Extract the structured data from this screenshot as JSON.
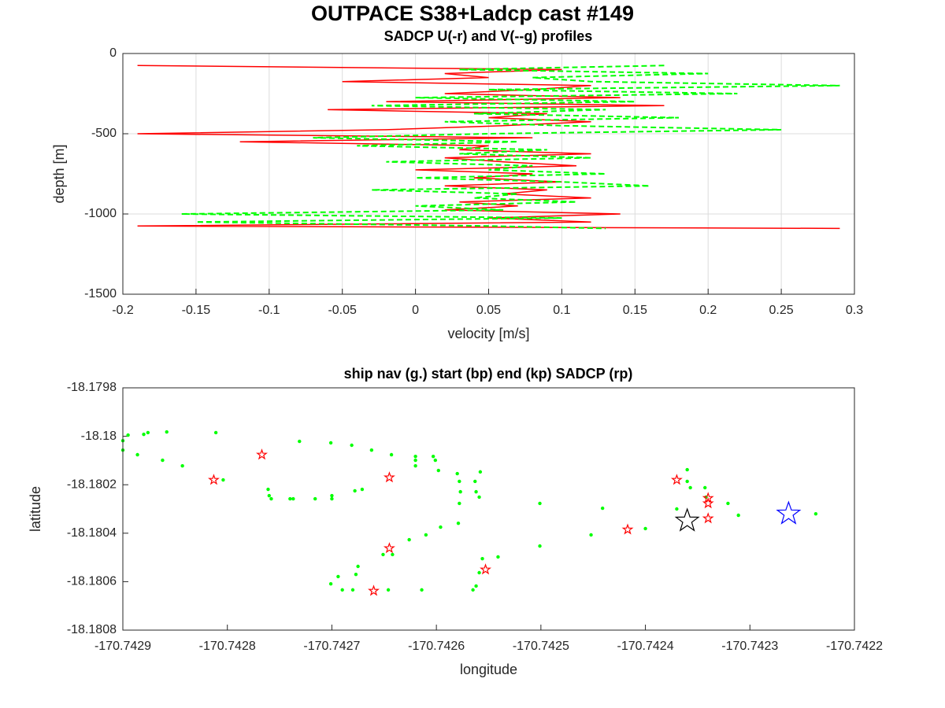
{
  "chart_data": [
    {
      "type": "line",
      "title": "OUTPACE S38+Ladcp cast #149",
      "subtitle": "SADCP U(-r) and V(--g) profiles",
      "x_label": "velocity [m/s]",
      "y_label": "depth [m]",
      "xlim": [
        -0.2,
        0.3
      ],
      "xticks": [
        -0.2,
        -0.15,
        -0.1,
        -0.05,
        0,
        0.05,
        0.1,
        0.15,
        0.2,
        0.25,
        0.3
      ],
      "ylim": [
        -1500,
        0
      ],
      "yticks": [
        -1500,
        -1000,
        -500,
        0
      ],
      "grid": true,
      "y": [
        -75,
        -100,
        -125,
        -150,
        -175,
        -200,
        -225,
        -250,
        -275,
        -300,
        -325,
        -350,
        -375,
        -400,
        -425,
        -450,
        -475,
        -500,
        -525,
        -550,
        -575,
        -600,
        -625,
        -650,
        -675,
        -700,
        -725,
        -750,
        -775,
        -800,
        -825,
        -850,
        -875,
        -900,
        -925,
        -950,
        -975,
        -1000,
        -1025,
        -1050,
        -1075,
        -1090
      ],
      "series": [
        {
          "color": "#ff0000",
          "dash": "-",
          "values": [
            -0.19,
            0.1,
            0.02,
            0.05,
            -0.05,
            0.12,
            0.08,
            0.02,
            0.14,
            -0.02,
            0.17,
            -0.06,
            0.09,
            0.05,
            0.12,
            0.06,
            -0.02,
            -0.19,
            0.08,
            -0.12,
            0.05,
            0.03,
            0.12,
            0.02,
            0.06,
            0.11,
            0.0,
            0.08,
            0.04,
            0.1,
            0.02,
            0.09,
            0.06,
            0.12,
            0.03,
            0.07,
            0.02,
            0.14,
            0.05,
            0.12,
            -0.19,
            0.29
          ]
        },
        {
          "color": "#00ff00",
          "dash": "--",
          "values": [
            0.17,
            0.03,
            0.2,
            0.08,
            0.12,
            0.29,
            0.05,
            0.22,
            0.0,
            0.15,
            -0.03,
            0.13,
            0.04,
            0.18,
            0.02,
            0.1,
            0.25,
            0.05,
            -0.07,
            0.07,
            -0.04,
            0.09,
            0.03,
            0.12,
            -0.02,
            0.08,
            0.05,
            0.13,
            0.0,
            0.1,
            0.16,
            -0.03,
            0.07,
            0.04,
            0.11,
            0.0,
            0.06,
            -0.16,
            0.1,
            -0.15,
            0.05,
            0.13
          ]
        }
      ]
    },
    {
      "type": "scatter",
      "title": "ship nav (g.) start (bp) end (kp) SADCP (rp)",
      "x_label": "longitude",
      "y_label": "latitude",
      "xlim": [
        -170.7429,
        -170.7422
      ],
      "xticks": [
        -170.7429,
        -170.7428,
        -170.7427,
        -170.7426,
        -170.7425,
        -170.7424,
        -170.7423,
        -170.7422
      ],
      "ylim": [
        -18.1808,
        -18.1798
      ],
      "yticks": [
        -18.1808,
        -18.1806,
        -18.1804,
        -18.1802,
        -18.18,
        -18.1798
      ],
      "grid": false,
      "series": [
        {
          "color": "#00ff00",
          "marker": "dot",
          "marker_size": 2.2,
          "x": [
            -170.7429,
            -170.7429,
            -170.742895,
            -170.742886,
            -170.74288,
            -170.742876,
            -170.742862,
            -170.742858,
            -170.742843,
            -170.742811,
            -170.742804,
            -170.742761,
            -170.74276,
            -170.742758,
            -170.74274,
            -170.742737,
            -170.742731,
            -170.742716,
            -170.742701,
            -170.7427,
            -170.7427,
            -170.742681,
            -170.742678,
            -170.742671,
            -170.742662,
            -170.742643,
            -170.74262,
            -170.74262,
            -170.74262,
            -170.742603,
            -170.742601,
            -170.742598,
            -170.74258,
            -170.742578,
            -170.742577,
            -170.742578,
            -170.742579,
            -170.742596,
            -170.74261,
            -170.742626,
            -170.742642,
            -170.742651,
            -170.742675,
            -170.742677,
            -170.742694,
            -170.742701,
            -170.74269,
            -170.74268,
            -170.742646,
            -170.742614,
            -170.742565,
            -170.742562,
            -170.742559,
            -170.742556,
            -170.742541,
            -170.742563,
            -170.742562,
            -170.742559,
            -170.742501,
            -170.742501,
            -170.742452,
            -170.742441,
            -170.7424,
            -170.74237,
            -170.74236,
            -170.74236,
            -170.742357,
            -170.742343,
            -170.742342,
            -170.742321,
            -170.742311,
            -170.742237,
            -170.742558
          ],
          "values": [
            -18.180018,
            -18.180057,
            -18.179995,
            -18.180076,
            -18.179992,
            -18.179985,
            -18.180099,
            -18.179982,
            -18.180122,
            -18.179985,
            -18.18018,
            -18.180219,
            -18.180245,
            -18.180258,
            -18.180258,
            -18.180258,
            -18.180021,
            -18.180258,
            -18.180027,
            -18.180258,
            -18.180245,
            -18.180037,
            -18.180225,
            -18.180219,
            -18.180057,
            -18.180076,
            -18.180083,
            -18.180099,
            -18.180122,
            -18.180083,
            -18.180099,
            -18.180141,
            -18.180154,
            -18.180186,
            -18.180229,
            -18.180277,
            -18.180359,
            -18.180375,
            -18.180407,
            -18.180427,
            -18.180488,
            -18.180488,
            -18.180537,
            -18.18057,
            -18.180579,
            -18.180609,
            -18.180634,
            -18.180634,
            -18.180634,
            -18.180634,
            -18.180634,
            -18.180618,
            -18.180563,
            -18.180505,
            -18.180498,
            -18.180186,
            -18.180229,
            -18.180251,
            -18.180277,
            -18.180453,
            -18.180407,
            -18.180297,
            -18.180381,
            -18.1803,
            -18.180138,
            -18.180186,
            -18.180212,
            -18.180212,
            -18.180251,
            -18.180277,
            -18.180326,
            -18.18032,
            -18.180147
          ]
        },
        {
          "color": "#ff0000",
          "marker": "star",
          "marker_size": 6,
          "x": [
            -170.742813,
            -170.742767,
            -170.742645,
            -170.742645,
            -170.74266,
            -170.742553,
            -170.742417,
            -170.74237,
            -170.74234,
            -170.74234,
            -170.74234
          ],
          "values": [
            -18.18018,
            -18.180076,
            -18.18017,
            -18.180462,
            -18.180638,
            -18.18055,
            -18.180385,
            -18.18018,
            -18.180255,
            -18.180277,
            -18.180339
          ]
        },
        {
          "color": "#0000ff",
          "marker": "star",
          "marker_size": 15,
          "x": [
            -170.742263
          ],
          "values": [
            -18.18032
          ]
        },
        {
          "color": "#000000",
          "marker": "star",
          "marker_size": 15,
          "x": [
            -170.74236
          ],
          "values": [
            -18.180349
          ]
        }
      ]
    }
  ]
}
